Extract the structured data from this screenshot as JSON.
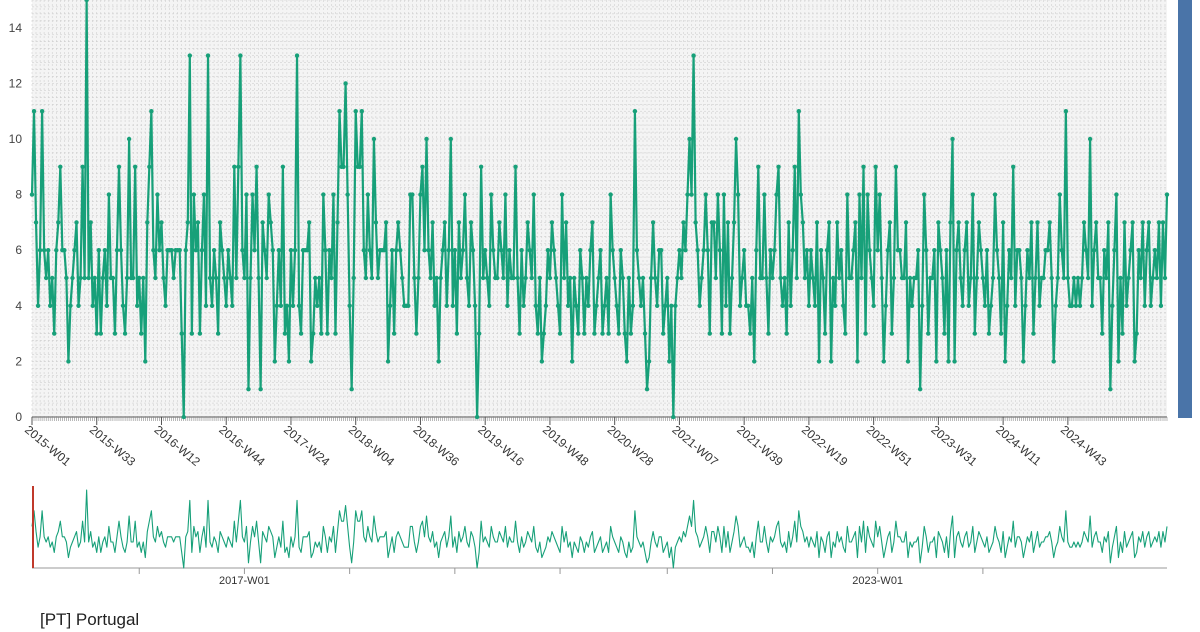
{
  "page": {
    "country_label": "[PT] Portugal"
  },
  "colors": {
    "series": "#17a079",
    "grid": "#c8c8c8",
    "plot_bg": "#f4f4f4",
    "axis": "#555555",
    "navigator_handle": "#c0392b",
    "scrollbar": "#4a74a8"
  },
  "chart_data": [
    {
      "type": "line",
      "title": "",
      "xlabel": "",
      "ylabel": "",
      "ylim": [
        0,
        15
      ],
      "y_ticks": [
        "0",
        "2",
        "4",
        "6",
        "8",
        "10",
        "12",
        "14"
      ],
      "x_range": [
        "2015-W01",
        "2024-W52"
      ],
      "x_tick_labels": [
        "2015-W01",
        "2015-W33",
        "2016-W12",
        "2016-W44",
        "2017-W24",
        "2018-W04",
        "2018-W36",
        "2019-W16",
        "2019-W48",
        "2020-W28",
        "2021-W07",
        "2021-W39",
        "2022-W19",
        "2022-W51",
        "2023-W31",
        "2024-W11",
        "2024-W43"
      ],
      "grid": true,
      "legend": "none",
      "series": [
        {
          "x_start": "2015-W01",
          "interval": "week",
          "values": [
            8,
            11,
            7,
            4,
            6,
            11,
            6,
            5,
            6,
            4,
            5,
            3,
            6,
            7,
            9,
            6,
            6,
            5,
            2,
            4,
            5,
            6,
            7,
            4,
            5,
            9,
            5,
            15,
            5,
            7,
            4,
            5,
            3,
            6,
            3,
            5,
            6,
            4,
            8,
            5,
            5,
            3,
            6,
            9,
            6,
            4,
            3,
            5,
            10,
            5,
            5,
            9,
            4,
            5,
            3,
            5,
            2,
            7,
            9,
            11,
            6,
            5,
            8,
            6,
            7,
            5,
            4,
            6,
            6,
            6,
            5,
            6,
            6,
            6,
            3,
            0,
            6,
            7,
            13,
            3,
            8,
            6,
            7,
            3,
            6,
            8,
            4,
            13,
            5,
            4,
            6,
            5,
            3,
            7,
            6,
            5,
            4,
            6,
            5,
            4,
            9,
            5,
            9,
            13,
            6,
            5,
            8,
            1,
            5,
            8,
            6,
            9,
            5,
            1,
            7,
            6,
            5,
            8,
            7,
            6,
            2,
            4,
            6,
            4,
            9,
            3,
            4,
            2,
            6,
            4,
            6,
            13,
            4,
            3,
            6,
            6,
            6,
            7,
            2,
            3,
            5,
            4,
            5,
            3,
            8,
            6,
            3,
            6,
            5,
            8,
            3,
            7,
            11,
            9,
            9,
            12,
            8,
            4,
            1,
            5,
            11,
            9,
            9,
            11,
            6,
            5,
            8,
            6,
            5,
            10,
            7,
            5,
            6,
            6,
            6,
            7,
            2,
            4,
            6,
            3,
            6,
            7,
            6,
            5,
            4,
            4,
            4,
            8,
            8,
            5,
            3,
            5,
            8,
            9,
            6,
            10,
            6,
            5,
            7,
            4,
            5,
            2,
            5,
            6,
            7,
            4,
            6,
            10,
            4,
            6,
            3,
            7,
            5,
            6,
            8,
            5,
            4,
            7,
            6,
            4,
            0,
            3,
            9,
            5,
            6,
            5,
            4,
            8,
            6,
            5,
            5,
            7,
            6,
            5,
            8,
            4,
            6,
            5,
            5,
            9,
            5,
            3,
            6,
            4,
            5,
            7,
            6,
            5,
            8,
            4,
            3,
            5,
            2,
            3,
            4,
            6,
            5,
            7,
            6,
            5,
            4,
            3,
            8,
            5,
            7,
            4,
            5,
            2,
            5,
            4,
            3,
            6,
            5,
            3,
            5,
            4,
            6,
            7,
            3,
            4,
            5,
            6,
            3,
            4,
            5,
            3,
            8,
            6,
            5,
            4,
            3,
            6,
            5,
            3,
            2,
            5,
            3,
            4,
            11,
            6,
            5,
            4,
            5,
            3,
            1,
            2,
            5,
            7,
            5,
            4,
            6,
            6,
            3,
            4,
            5,
            2,
            4,
            0,
            4,
            5,
            6,
            5,
            7,
            6,
            8,
            10,
            8,
            13,
            7,
            6,
            4,
            5,
            6,
            8,
            6,
            3,
            7,
            7,
            5,
            8,
            6,
            3,
            8,
            4,
            7,
            3,
            5,
            7,
            10,
            8,
            4,
            5,
            6,
            4,
            4,
            3,
            5,
            2,
            6,
            9,
            5,
            5,
            8,
            5,
            3,
            6,
            5,
            6,
            8,
            9,
            5,
            4,
            5,
            3,
            7,
            4,
            6,
            9,
            5,
            11,
            8,
            7,
            5,
            6,
            4,
            6,
            5,
            4,
            7,
            2,
            6,
            5,
            3,
            6,
            7,
            2,
            5,
            4,
            7,
            5,
            6,
            4,
            3,
            8,
            5,
            5,
            6,
            7,
            2,
            8,
            5,
            9,
            3,
            8,
            6,
            5,
            4,
            9,
            6,
            8,
            5,
            2,
            4,
            6,
            7,
            3,
            5,
            9,
            6,
            6,
            5,
            5,
            7,
            2,
            5,
            4,
            5,
            5,
            6,
            1,
            4,
            8,
            6,
            3,
            5,
            5,
            6,
            2,
            7,
            6,
            5,
            3,
            6,
            2,
            7,
            10,
            2,
            6,
            7,
            5,
            4,
            6,
            7,
            4,
            5,
            8,
            3,
            5,
            7,
            6,
            5,
            4,
            6,
            3,
            4,
            5,
            8,
            6,
            5,
            3,
            7,
            2,
            4,
            6,
            5,
            9,
            4,
            6,
            6,
            5,
            2,
            4,
            6,
            5,
            7,
            3,
            5,
            7,
            4,
            5,
            5,
            6,
            6,
            7,
            5,
            2,
            4,
            5,
            8,
            6,
            5,
            11,
            5,
            4,
            4,
            5,
            4,
            5,
            4,
            5,
            7,
            6,
            5,
            10,
            4,
            6,
            7,
            5,
            5,
            3,
            6,
            5,
            7,
            1,
            4,
            6,
            8,
            2,
            5,
            3,
            7,
            4,
            5,
            6,
            7,
            2,
            3,
            6,
            5,
            7,
            4,
            6,
            7,
            4,
            5,
            6,
            5,
            7,
            4,
            7,
            5,
            8
          ]
        }
      ]
    },
    {
      "type": "line",
      "title": "",
      "xlabel": "",
      "ylabel": "",
      "x_tick_labels": [
        "2017-W01",
        "2023-W01"
      ],
      "grid": false,
      "legend": "none",
      "series_ref": "same as main chart series (navigator overview)"
    }
  ]
}
